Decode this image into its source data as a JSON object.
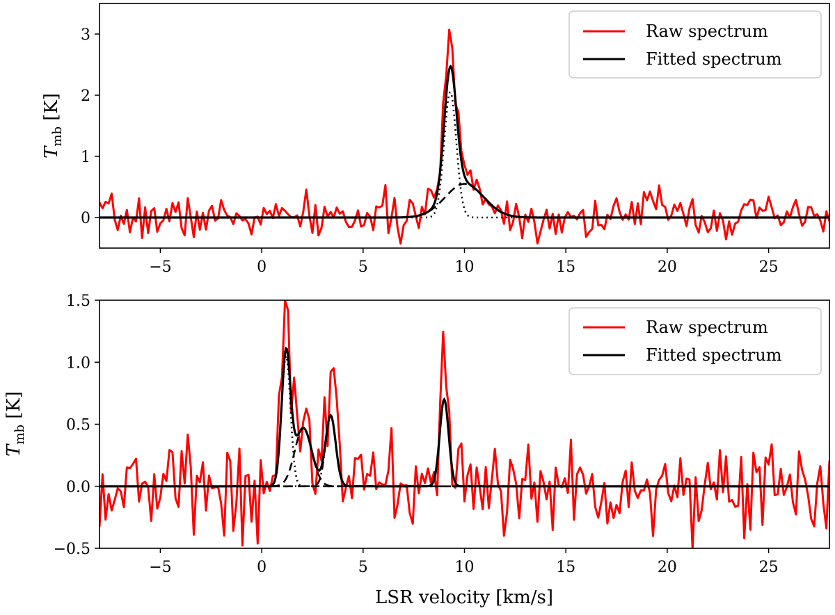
{
  "chart_data": [
    {
      "type": "line",
      "panel": "top",
      "title": "",
      "xlabel": "",
      "ylabel_main": "T",
      "ylabel_sub": "mb",
      "ylabel_unit": " [K]",
      "xlim": [
        -8,
        28
      ],
      "ylim": [
        -0.5,
        3.5
      ],
      "xticks": [
        -5,
        0,
        5,
        10,
        15,
        20,
        25
      ],
      "yticks": [
        0,
        1,
        2,
        3
      ],
      "ytick_labels": [
        "0",
        "1",
        "2",
        "3"
      ],
      "legend_position": "top-right",
      "legend": [
        {
          "label": "Raw spectrum",
          "color": "#ff0000"
        },
        {
          "label": "Fitted spectrum",
          "color": "#000000"
        }
      ],
      "components": [
        {
          "name": "narrow",
          "amp": 2.05,
          "center": 9.3,
          "sigma": 0.3,
          "style": "dotted"
        },
        {
          "name": "broad",
          "amp": 0.55,
          "center": 10.0,
          "sigma": 0.95,
          "style": "dashed"
        }
      ],
      "raw_spectrum": {
        "start": -8,
        "step": 0.15,
        "noise_sigma": 0.17,
        "noise_seed": 7,
        "spikes": [
          [
            20,
            0.35
          ]
        ]
      }
    },
    {
      "type": "line",
      "panel": "bottom",
      "title": "",
      "xlabel": "LSR velocity [km/s]",
      "ylabel_main": "T",
      "ylabel_sub": "mb",
      "ylabel_unit": " [K]",
      "xlim": [
        -8,
        28
      ],
      "ylim": [
        -0.5,
        1.5
      ],
      "xticks": [
        -5,
        0,
        5,
        10,
        15,
        20,
        25
      ],
      "yticks": [
        -0.5,
        0.0,
        0.5,
        1.0,
        1.5
      ],
      "ytick_labels": [
        "−0.5",
        "0.0",
        "0.5",
        "1.0",
        "1.5"
      ],
      "legend_position": "top-right",
      "legend": [
        {
          "label": "Raw spectrum",
          "color": "#ff0000"
        },
        {
          "label": "Fitted spectrum",
          "color": "#000000"
        }
      ],
      "components": [
        {
          "name": "c1",
          "amp": 1.05,
          "center": 1.2,
          "sigma": 0.22,
          "style": "dotted"
        },
        {
          "name": "c2",
          "amp": 0.47,
          "center": 2.05,
          "sigma": 0.42,
          "style": "dashed"
        },
        {
          "name": "c3",
          "amp": 0.57,
          "center": 3.4,
          "sigma": 0.25,
          "style": "dashdot"
        },
        {
          "name": "c4",
          "amp": 0.7,
          "center": 9.0,
          "sigma": 0.22,
          "style": "dashed"
        }
      ],
      "raw_spectrum": {
        "start": -8,
        "step": 0.15,
        "noise_sigma": 0.2,
        "noise_seed": 13,
        "spikes": []
      }
    }
  ],
  "tick_labels_x": [
    "−5",
    "0",
    "5",
    "10",
    "15",
    "20",
    "25"
  ]
}
